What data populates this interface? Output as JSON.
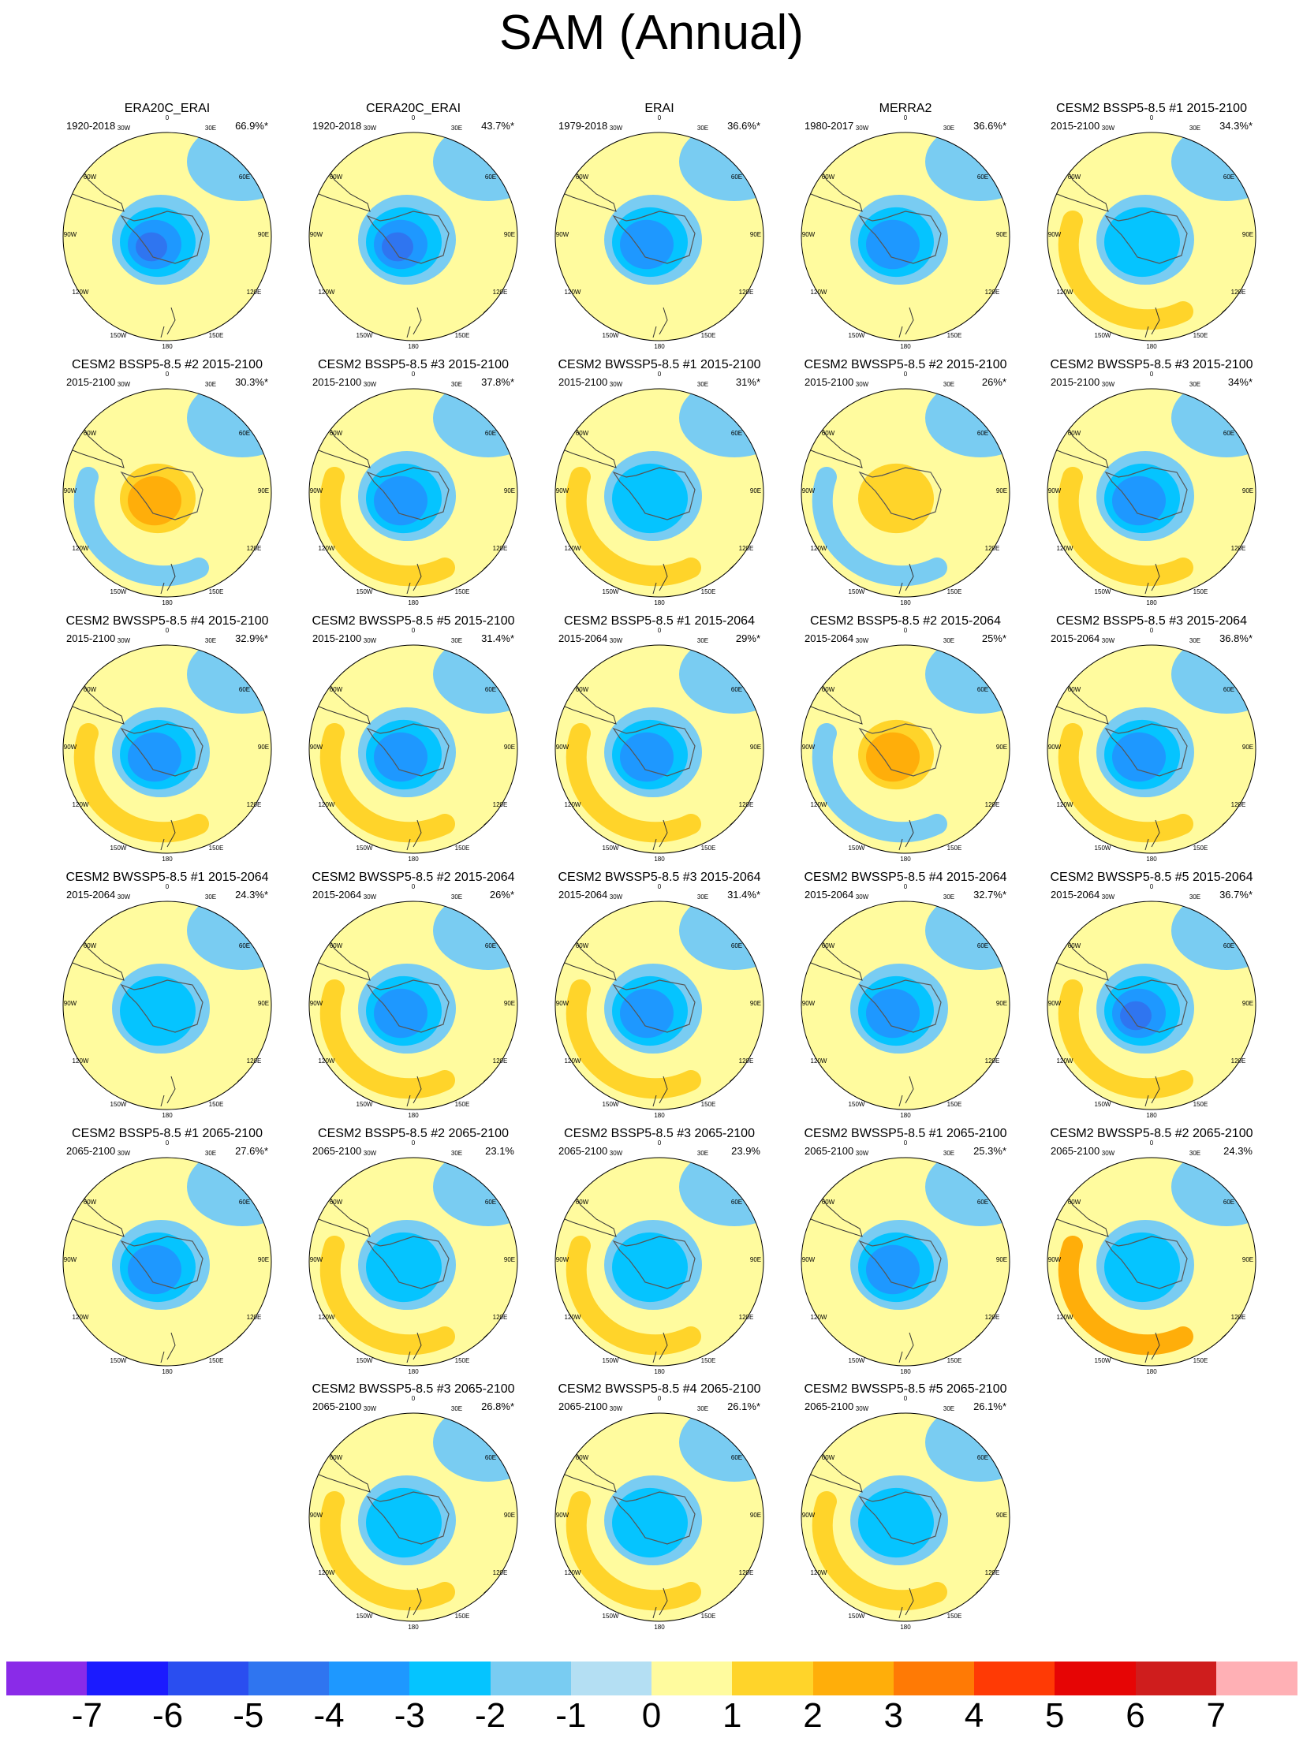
{
  "title": "SAM (Annual)",
  "colorbar": {
    "colors": [
      "#8a2be8",
      "#1b1bff",
      "#2a4ef0",
      "#2f75f0",
      "#1e98ff",
      "#05c4ff",
      "#79ccf2",
      "#b4dff3",
      "#fffb9e",
      "#ffd42a",
      "#ffae0a",
      "#ff7a05",
      "#ff3a05",
      "#e60505",
      "#cf1d1d",
      "#ffb0b5"
    ],
    "labels": [
      "-7",
      "-6",
      "-5",
      "-4",
      "-3",
      "-2",
      "-1",
      "0",
      "1",
      "2",
      "3",
      "4",
      "5",
      "6",
      "7"
    ]
  },
  "map_labels": {
    "top": "0",
    "top_left": "30W",
    "top_right": "30E",
    "upper_left": "60W",
    "upper_right": "60E",
    "left": "90W",
    "right": "90E",
    "lower_left": "120W",
    "lower_right": "120E",
    "bottom_left": "150W",
    "bottom_right": "150E",
    "bottom": "180"
  },
  "panels": [
    {
      "title": "ERA20C_ERAI",
      "period": "1920-2018",
      "percent": "66.9%*",
      "center_level": -5,
      "ring_level": 1
    },
    {
      "title": "CERA20C_ERAI",
      "period": "1920-2018",
      "percent": "43.7%*",
      "center_level": -4,
      "ring_level": 1
    },
    {
      "title": "ERAI",
      "period": "1979-2018",
      "percent": "36.6%*",
      "center_level": -3,
      "ring_level": 1
    },
    {
      "title": "MERRA2",
      "period": "1980-2017",
      "percent": "36.6%*",
      "center_level": -3,
      "ring_level": 1
    },
    {
      "title": "CESM2 BSSP5-8.5 #1 2015-2100",
      "period": "2015-2100",
      "percent": "34.3%*",
      "center_level": -2,
      "ring_level": 2
    },
    {
      "title": "CESM2 BSSP5-8.5 #2 2015-2100",
      "period": "2015-2100",
      "percent": "30.3%*",
      "center_level": 3,
      "ring_level": -1
    },
    {
      "title": "CESM2 BSSP5-8.5 #3 2015-2100",
      "period": "2015-2100",
      "percent": "37.8%*",
      "center_level": -3,
      "ring_level": 2
    },
    {
      "title": "CESM2 BWSSP5-8.5 #1 2015-2100",
      "period": "2015-2100",
      "percent": "31%*",
      "center_level": -2,
      "ring_level": 2
    },
    {
      "title": "CESM2 BWSSP5-8.5 #2 2015-2100",
      "period": "2015-2100",
      "percent": "26%*",
      "center_level": 2,
      "ring_level": -1
    },
    {
      "title": "CESM2 BWSSP5-8.5 #3 2015-2100",
      "period": "2015-2100",
      "percent": "34%*",
      "center_level": -3,
      "ring_level": 2
    },
    {
      "title": "CESM2 BWSSP5-8.5 #4 2015-2100",
      "period": "2015-2100",
      "percent": "32.9%*",
      "center_level": -3,
      "ring_level": 2
    },
    {
      "title": "CESM2 BWSSP5-8.5 #5 2015-2100",
      "period": "2015-2100",
      "percent": "31.4%*",
      "center_level": -3,
      "ring_level": 2
    },
    {
      "title": "CESM2 BSSP5-8.5 #1 2015-2064",
      "period": "2015-2064",
      "percent": "29%*",
      "center_level": -3,
      "ring_level": 2
    },
    {
      "title": "CESM2 BSSP5-8.5 #2 2015-2064",
      "period": "2015-2064",
      "percent": "25%*",
      "center_level": 3,
      "ring_level": -1
    },
    {
      "title": "CESM2 BSSP5-8.5 #3 2015-2064",
      "period": "2015-2064",
      "percent": "36.8%*",
      "center_level": -3,
      "ring_level": 2
    },
    {
      "title": "CESM2 BWSSP5-8.5 #1 2015-2064",
      "period": "2015-2064",
      "percent": "24.3%*",
      "center_level": -2,
      "ring_level": 1
    },
    {
      "title": "CESM2 BWSSP5-8.5 #2 2015-2064",
      "period": "2015-2064",
      "percent": "26%*",
      "center_level": -3,
      "ring_level": 2
    },
    {
      "title": "CESM2 BWSSP5-8.5 #3 2015-2064",
      "period": "2015-2064",
      "percent": "31.4%*",
      "center_level": -3,
      "ring_level": 2
    },
    {
      "title": "CESM2 BWSSP5-8.5 #4 2015-2064",
      "period": "2015-2064",
      "percent": "32.7%*",
      "center_level": -3,
      "ring_level": 1
    },
    {
      "title": "CESM2 BWSSP5-8.5 #5 2015-2064",
      "period": "2015-2064",
      "percent": "36.7%*",
      "center_level": -4,
      "ring_level": 2
    },
    {
      "title": "CESM2 BSSP5-8.5 #1 2065-2100",
      "period": "2065-2100",
      "percent": "27.6%*",
      "center_level": -3,
      "ring_level": 1
    },
    {
      "title": "CESM2 BSSP5-8.5 #2 2065-2100",
      "period": "2065-2100",
      "percent": "23.1%",
      "center_level": -2,
      "ring_level": 2
    },
    {
      "title": "CESM2 BSSP5-8.5 #3 2065-2100",
      "period": "2065-2100",
      "percent": "23.9%",
      "center_level": -2,
      "ring_level": 2
    },
    {
      "title": "CESM2 BWSSP5-8.5 #1 2065-2100",
      "period": "2065-2100",
      "percent": "25.3%*",
      "center_level": -3,
      "ring_level": 1
    },
    {
      "title": "CESM2 BWSSP5-8.5 #2 2065-2100",
      "period": "2065-2100",
      "percent": "24.3%",
      "center_level": -2,
      "ring_level": 3
    },
    {
      "title": "CESM2 BWSSP5-8.5 #3 2065-2100",
      "period": "2065-2100",
      "percent": "26.8%*",
      "center_level": -2,
      "ring_level": 2
    },
    {
      "title": "CESM2 BWSSP5-8.5 #4 2065-2100",
      "period": "2065-2100",
      "percent": "26.1%*",
      "center_level": -2,
      "ring_level": 2
    },
    {
      "title": "CESM2 BWSSP5-8.5 #5 2065-2100",
      "period": "2065-2100",
      "percent": "26.1%*",
      "center_level": -2,
      "ring_level": 2
    }
  ]
}
